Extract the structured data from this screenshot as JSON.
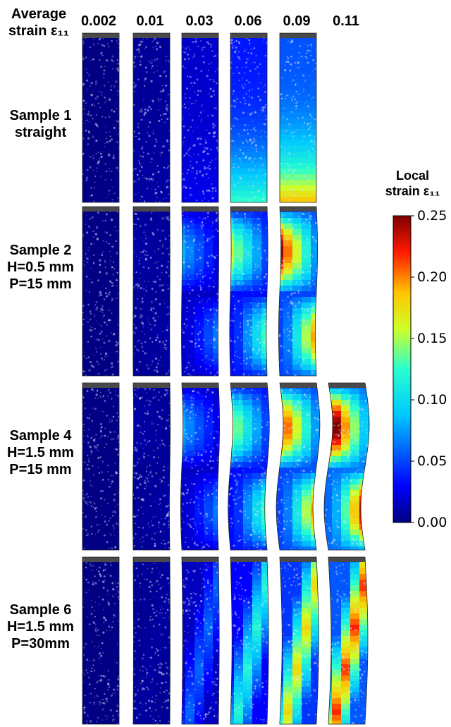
{
  "header": {
    "title_line1": "Average",
    "title_line2": "strain ε₁₁"
  },
  "columns": [
    "0.002",
    "0.01",
    "0.03",
    "0.06",
    "0.09",
    "0.11"
  ],
  "rows": [
    {
      "lines": [
        "Sample 1",
        "straight"
      ],
      "strain_levels": [
        0.002,
        0.01,
        0.03,
        0.06,
        0.09
      ]
    },
    {
      "lines": [
        "Sample 2",
        "H=0.5 mm",
        "P=15 mm"
      ],
      "strain_levels": [
        0.002,
        0.01,
        0.03,
        0.06,
        0.09
      ]
    },
    {
      "lines": [
        "Sample 4",
        "H=1.5 mm",
        "P=15 mm"
      ],
      "strain_levels": [
        0.002,
        0.01,
        0.03,
        0.06,
        0.09,
        0.11
      ]
    },
    {
      "lines": [
        "Sample 6",
        "H=1.5 mm",
        "P=30mm"
      ],
      "strain_levels": [
        0.002,
        0.01,
        0.03,
        0.06,
        0.09,
        0.11
      ]
    }
  ],
  "colorbar": {
    "title_line1": "Local",
    "title_line2": "strain ε₁₁",
    "ticks": [
      "0.25",
      "0.20",
      "0.15",
      "0.10",
      "0.05",
      "0.00"
    ],
    "range": [
      0.0,
      0.25
    ],
    "colormap": "jet"
  },
  "colors": {
    "low": "#00007f",
    "mid_low": "#0050ff",
    "mid": "#29ffce",
    "mid_high": "#ffc400",
    "high": "#7f0000"
  }
}
